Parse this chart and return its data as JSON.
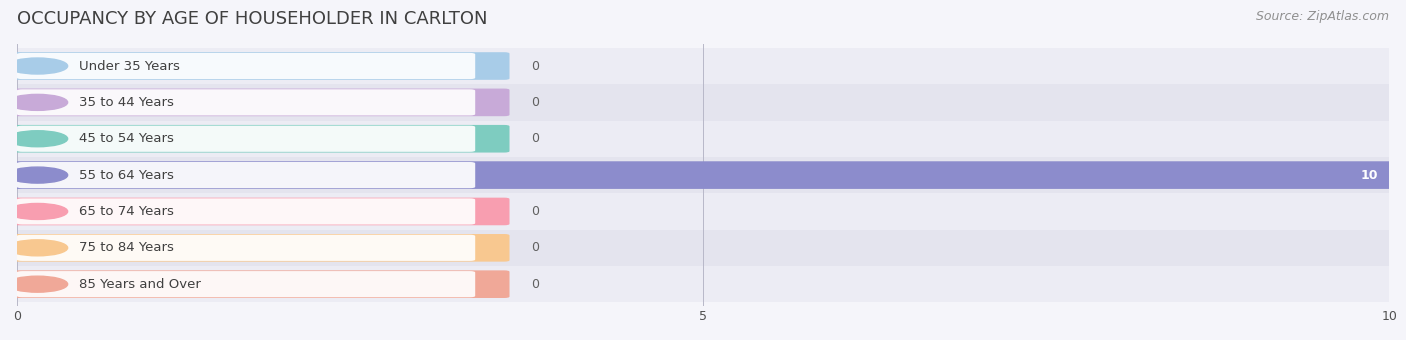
{
  "title": "OCCUPANCY BY AGE OF HOUSEHOLDER IN CARLTON",
  "source": "Source: ZipAtlas.com",
  "categories": [
    "Under 35 Years",
    "35 to 44 Years",
    "45 to 54 Years",
    "55 to 64 Years",
    "65 to 74 Years",
    "75 to 84 Years",
    "85 Years and Over"
  ],
  "values": [
    0,
    0,
    0,
    10,
    0,
    0,
    0
  ],
  "bar_colors": [
    "#a8cce8",
    "#c8aad8",
    "#7eccc0",
    "#8c8ccc",
    "#f89eb0",
    "#f8c890",
    "#f0a898"
  ],
  "bg_row_colors": [
    "#ececf4",
    "#e4e4ee"
  ],
  "xlim": [
    0,
    10
  ],
  "xticks": [
    0,
    5,
    10
  ],
  "title_color": "#404040",
  "source_color": "#909090",
  "label_color": "#404040",
  "value_label_color_bar": "#ffffff",
  "value_label_color_zero": "#606060",
  "title_fontsize": 13,
  "source_fontsize": 9,
  "label_fontsize": 9.5,
  "value_fontsize": 9,
  "tick_fontsize": 9,
  "bar_height": 0.68,
  "background_color": "#f5f5fa"
}
